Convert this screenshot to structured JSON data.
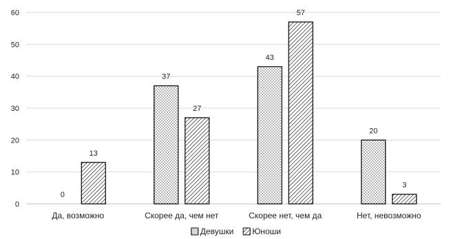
{
  "chart_data": {
    "type": "bar",
    "categories": [
      "Да, возможно",
      "Скорее да, чем нет",
      "Скорее нет, чем да",
      "Нет, невозможно"
    ],
    "series": [
      {
        "name": "Девушки",
        "pattern": "dots",
        "values": [
          0,
          37,
          43,
          20
        ]
      },
      {
        "name": "Юноши",
        "pattern": "hatch",
        "values": [
          13,
          27,
          57,
          3
        ]
      }
    ],
    "ylim": [
      0,
      60
    ],
    "yticks": [
      0,
      10,
      20,
      30,
      40,
      50,
      60
    ],
    "grid": true,
    "legend_position": "bottom",
    "data_labels": true,
    "colors": {
      "bar_stroke": "#000000",
      "grid": "#d9d9d9",
      "axis": "#bfbfbf",
      "fill": "#ffffff"
    }
  }
}
